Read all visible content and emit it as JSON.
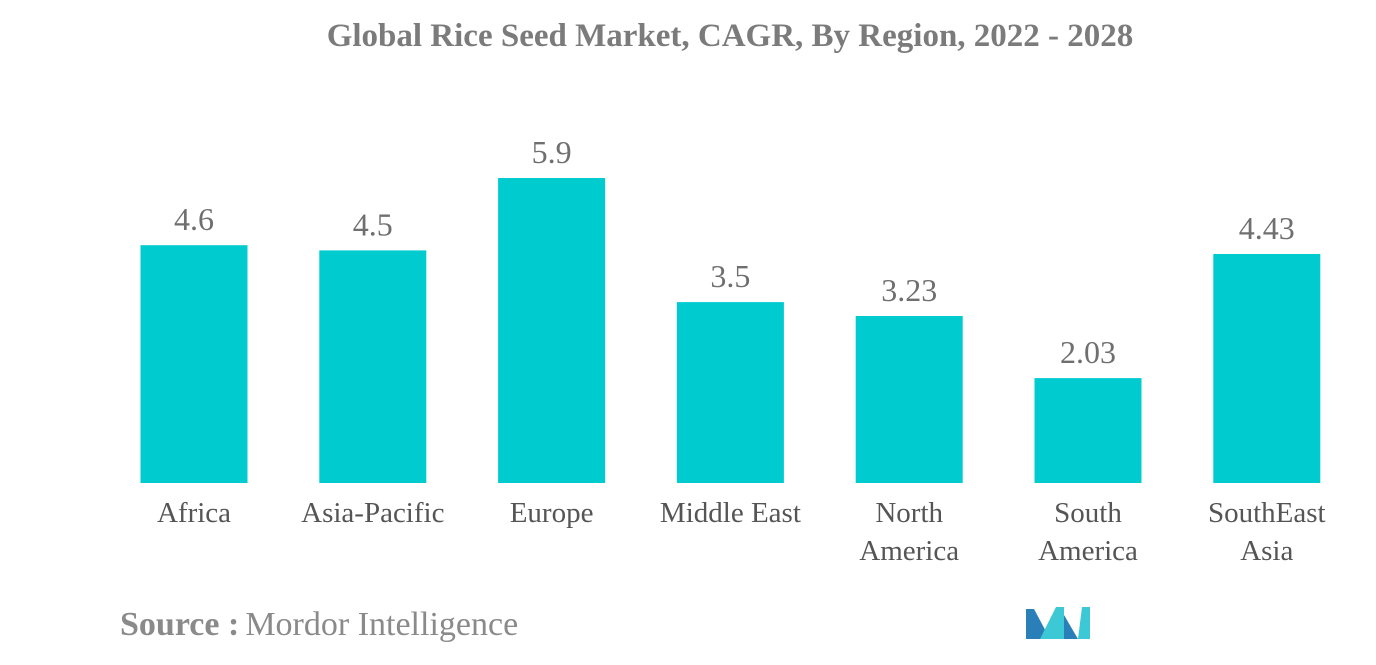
{
  "chart_data": {
    "type": "bar",
    "title": "Global Rice Seed Market, CAGR, By Region, 2022 - 2028",
    "categories": [
      "Africa",
      "Asia-Pacific",
      "Europe",
      "Middle East",
      "North America",
      "South America",
      "SouthEast Asia"
    ],
    "category_lines": [
      [
        "Africa"
      ],
      [
        "Asia-Pacific"
      ],
      [
        "Europe"
      ],
      [
        "Middle East"
      ],
      [
        "North",
        "America"
      ],
      [
        "South",
        "America"
      ],
      [
        "SouthEast",
        "Asia"
      ]
    ],
    "values": [
      4.6,
      4.5,
      5.9,
      3.5,
      3.23,
      2.03,
      4.43
    ],
    "value_labels": [
      "4.6",
      "4.5",
      "5.9",
      "3.5",
      "3.23",
      "2.03",
      "4.43"
    ],
    "xlabel": "",
    "ylabel": "",
    "ylim": [
      0,
      5.9
    ],
    "grid": false,
    "bar_color": "#00CCD0"
  },
  "source": {
    "label": "Source :",
    "value": "Mordor Intelligence"
  },
  "logo": {
    "icon": "mordor-intelligence-logo-icon",
    "colors": [
      "#2A7FB8",
      "#3CC8D4"
    ]
  }
}
